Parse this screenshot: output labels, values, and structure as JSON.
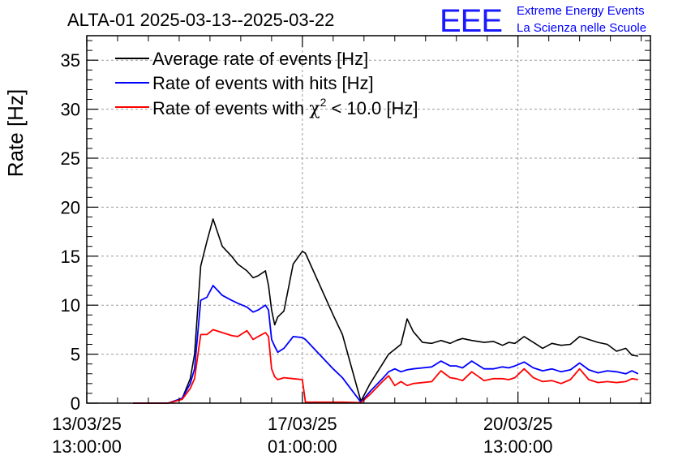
{
  "chart_data": {
    "type": "line",
    "title": "ALTA-01 2025-03-13--2025-03-22",
    "ylabel": "Rate [Hz]",
    "xlabel": "",
    "ylim": [
      0,
      37.5
    ],
    "xlim_days": [
      0,
      9.15
    ],
    "grid": true,
    "legend_position": "top-left",
    "y_ticks": [
      0,
      5,
      10,
      15,
      20,
      25,
      30,
      35
    ],
    "y_minor_step": 1,
    "x_ticks": [
      {
        "line1": "13/03/25",
        "line2": "13:00:00",
        "day": 0.0
      },
      {
        "line1": "17/03/25",
        "line2": "01:00:00",
        "day": 3.5
      },
      {
        "line1": "20/03/25",
        "line2": "13:00:00",
        "day": 7.0
      }
    ],
    "series": [
      {
        "name": "Average rate of events [Hz]",
        "color": "#000000",
        "x": [
          0.75,
          1.32,
          1.55,
          1.68,
          1.75,
          1.85,
          1.95,
          2.05,
          2.2,
          2.35,
          2.45,
          2.6,
          2.7,
          2.78,
          2.9,
          2.95,
          3.0,
          3.05,
          3.1,
          3.2,
          3.35,
          3.5,
          3.55,
          4.0,
          4.15,
          4.45,
          4.6,
          4.8,
          4.9,
          5.0,
          5.1,
          5.2,
          5.3,
          5.45,
          5.6,
          5.75,
          5.9,
          6.0,
          6.1,
          6.25,
          6.45,
          6.6,
          6.75,
          6.85,
          6.95,
          7.1,
          7.25,
          7.4,
          7.55,
          7.7,
          7.85,
          8.0,
          8.15,
          8.3,
          8.45,
          8.6,
          8.75,
          8.85,
          8.95
        ],
        "y": [
          0,
          0,
          0.5,
          2.5,
          5,
          14,
          16.5,
          18.8,
          16,
          15,
          14.2,
          13.5,
          12.8,
          13,
          13.5,
          12,
          9.5,
          8,
          8.8,
          9.4,
          14.2,
          15.5,
          15.3,
          9,
          7,
          0.2,
          2,
          4,
          5,
          5.5,
          6,
          8.6,
          7.3,
          6.2,
          6.1,
          6.4,
          6.1,
          6.4,
          6.6,
          6.4,
          6.2,
          6.3,
          5.9,
          6.2,
          6.1,
          6.8,
          6.2,
          5.6,
          6.1,
          5.9,
          6.0,
          6.8,
          6.5,
          6.2,
          6.0,
          5.3,
          5.6,
          4.9,
          4.8
        ]
      },
      {
        "name": "Rate of events with hits [Hz]",
        "color": "#0000ff",
        "x": [
          0.75,
          1.32,
          1.55,
          1.68,
          1.75,
          1.85,
          1.95,
          2.05,
          2.2,
          2.35,
          2.45,
          2.6,
          2.7,
          2.78,
          2.9,
          2.95,
          3.0,
          3.05,
          3.1,
          3.2,
          3.35,
          3.5,
          3.55,
          4.0,
          4.15,
          4.45,
          4.6,
          4.8,
          4.9,
          5.0,
          5.1,
          5.2,
          5.3,
          5.45,
          5.6,
          5.75,
          5.9,
          6.0,
          6.1,
          6.25,
          6.45,
          6.6,
          6.75,
          6.85,
          6.95,
          7.1,
          7.25,
          7.4,
          7.55,
          7.7,
          7.85,
          8.0,
          8.15,
          8.3,
          8.45,
          8.6,
          8.75,
          8.85,
          8.95
        ],
        "y": [
          0,
          0,
          0.5,
          2,
          3.5,
          10.5,
          10.8,
          12,
          11,
          10.5,
          10.2,
          9.8,
          9.3,
          9.5,
          10,
          9.5,
          6.5,
          5.8,
          5.2,
          5.6,
          6.8,
          6.7,
          6.5,
          3.5,
          2.6,
          0.1,
          1.2,
          2.5,
          3.2,
          3.5,
          3.2,
          3.4,
          3.5,
          3.6,
          3.7,
          4.3,
          3.8,
          3.8,
          3.6,
          4.3,
          3.5,
          3.5,
          3.7,
          3.6,
          3.8,
          4.2,
          3.6,
          3.3,
          3.5,
          3.2,
          3.4,
          4.1,
          3.4,
          3.1,
          3.3,
          3.2,
          3.0,
          3.3,
          3.0
        ]
      },
      {
        "name": "Rate of events with χ² < 10.0 [Hz]",
        "color": "#ff0000",
        "x": [
          0.75,
          1.32,
          1.55,
          1.68,
          1.75,
          1.85,
          1.95,
          2.05,
          2.2,
          2.35,
          2.45,
          2.6,
          2.7,
          2.78,
          2.9,
          2.95,
          3.0,
          3.05,
          3.1,
          3.2,
          3.35,
          3.5,
          3.55,
          4.0,
          4.15,
          4.45,
          4.6,
          4.8,
          4.9,
          5.0,
          5.1,
          5.2,
          5.3,
          5.45,
          5.6,
          5.75,
          5.9,
          6.0,
          6.1,
          6.25,
          6.45,
          6.6,
          6.75,
          6.85,
          6.95,
          7.1,
          7.25,
          7.4,
          7.55,
          7.7,
          7.85,
          8.0,
          8.15,
          8.3,
          8.45,
          8.6,
          8.75,
          8.85,
          8.95
        ],
        "y": [
          0,
          0,
          0.4,
          1.5,
          2.5,
          7.0,
          7.0,
          7.5,
          7.2,
          6.9,
          6.8,
          7.4,
          6.5,
          6.8,
          7.2,
          6.8,
          3.5,
          2.7,
          2.4,
          2.6,
          2.5,
          2.4,
          0.1,
          0.1,
          0.1,
          0.05,
          0.9,
          2.2,
          2.8,
          1.8,
          2.2,
          1.8,
          2.0,
          2.1,
          2.2,
          3.3,
          2.6,
          2.5,
          2.3,
          3.2,
          2.3,
          2.5,
          2.5,
          2.4,
          2.6,
          3.5,
          2.6,
          2.2,
          2.3,
          2.0,
          2.4,
          3.5,
          2.4,
          2.1,
          2.2,
          2.1,
          2.2,
          2.5,
          2.4
        ]
      }
    ]
  },
  "logo": {
    "mark": "EEE",
    "line1": "Extreme Energy Events",
    "line2": "La Scienza nelle Scuole"
  },
  "legend": {
    "item0": "Average rate of events [Hz]",
    "item1": "Rate of events with hits [Hz]",
    "item2_pre": "Rate of events with ",
    "item2_chi": "χ",
    "item2_sup": "2",
    "item2_post": " < 10.0 [Hz]"
  }
}
